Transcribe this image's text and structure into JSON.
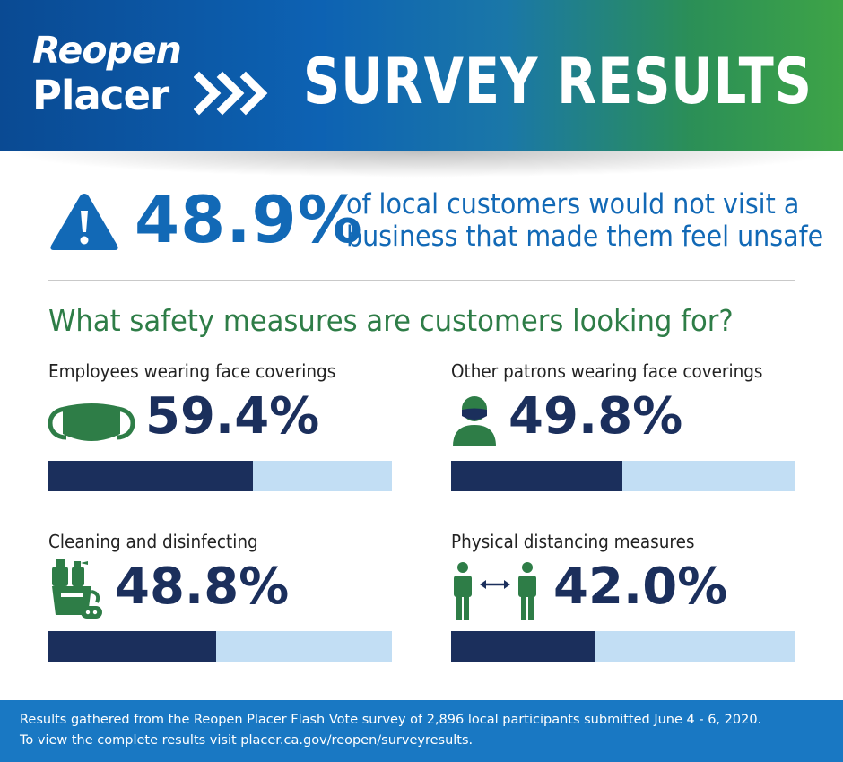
{
  "header": {
    "logo_line1": "Reopen",
    "logo_line2": "Placer",
    "title": "SURVEY RESULTS",
    "gradient_colors": [
      "#0a4a93",
      "#3ea447"
    ]
  },
  "headline": {
    "icon": "warning-icon",
    "percent": "48.9%",
    "text_line1": "of local customers would not visit a",
    "text_line2": "business that made them feel unsafe",
    "color": "#1269b6"
  },
  "question": "What safety measures are customers looking for?",
  "metrics": [
    {
      "label": "Employees wearing face coverings",
      "percent_label": "59.4%",
      "icon": "face-mask-icon"
    },
    {
      "label": "Other patrons wearing face coverings",
      "percent_label": "49.8%",
      "icon": "masked-person-icon"
    },
    {
      "label": "Cleaning and disinfecting",
      "percent_label": "48.8%",
      "icon": "cleaning-supplies-icon"
    },
    {
      "label": "Physical distancing measures",
      "percent_label": "42.0%",
      "icon": "distancing-icon"
    }
  ],
  "chart_data": {
    "type": "bar",
    "categories": [
      "Employees wearing face coverings",
      "Other patrons wearing face coverings",
      "Cleaning and disinfecting",
      "Physical distancing measures"
    ],
    "values": [
      59.4,
      49.8,
      48.8,
      42.0
    ],
    "ylim": [
      0,
      100
    ],
    "colors": {
      "fill": "#1b2f5c",
      "track": "#c2def4"
    }
  },
  "footer": {
    "line1": "Results gathered from the Reopen Placer Flash Vote survey of 2,896 local participants submitted June 4 - 6, 2020.",
    "line2": "To view the complete results visit placer.ca.gov/reopen/surveyresults."
  }
}
